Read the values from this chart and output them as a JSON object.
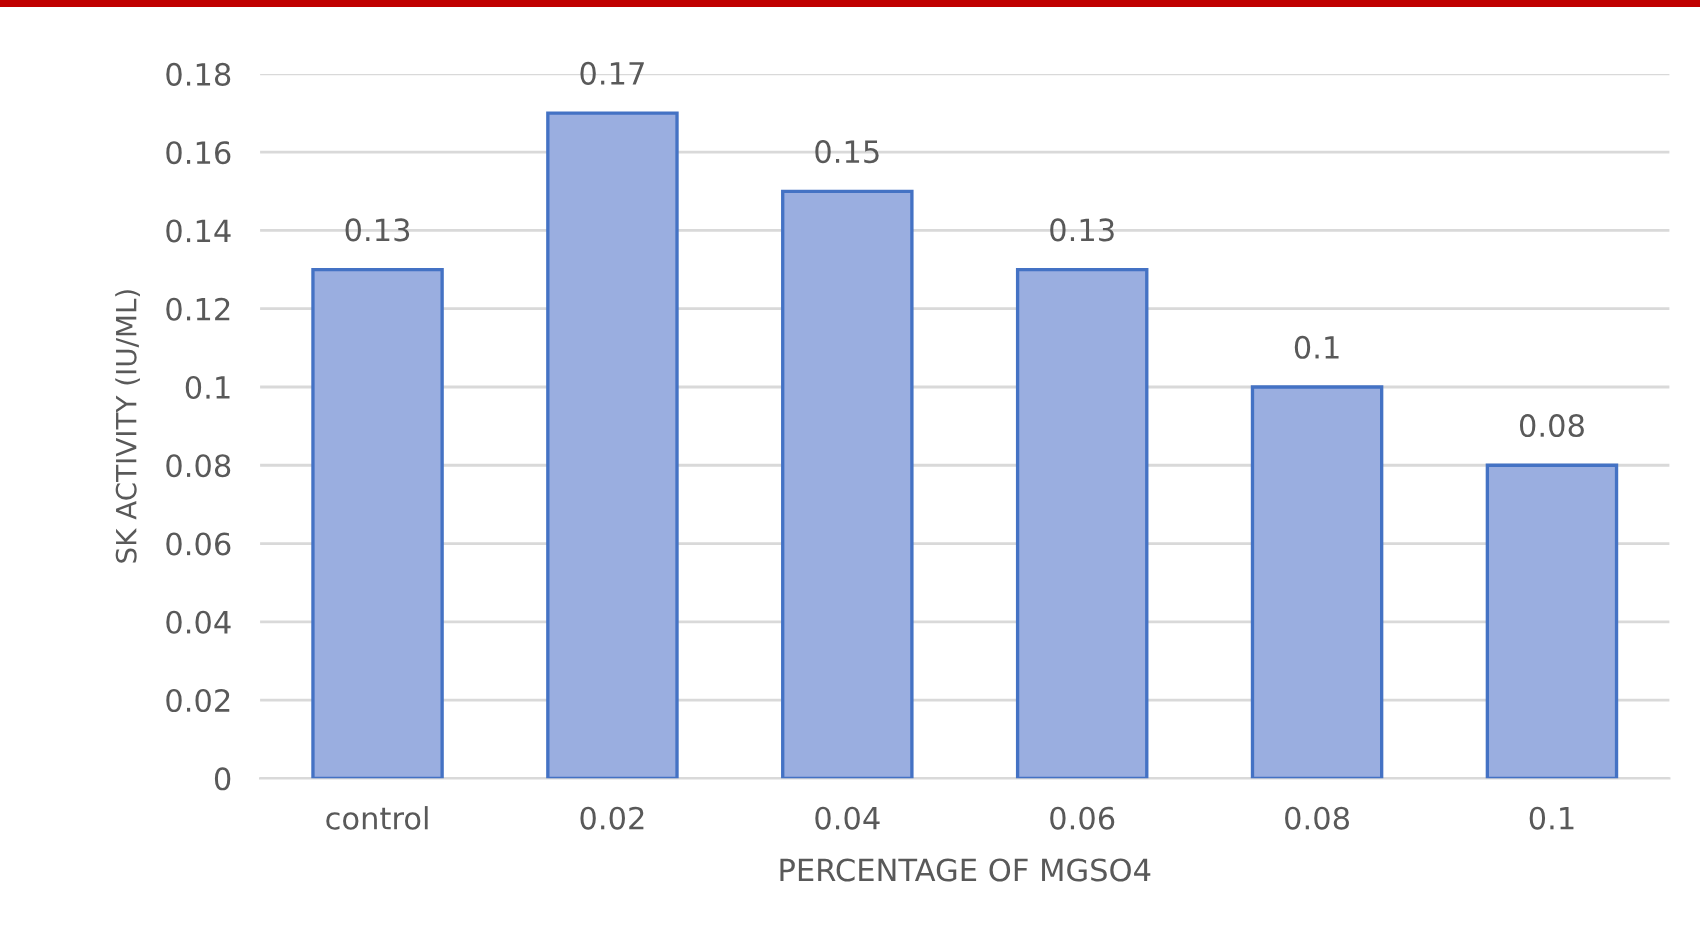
{
  "chart_data": {
    "type": "bar",
    "xlabel": "PERCENTAGE OF MGSO4",
    "ylabel": "SK ACTIVITY (IU/ML)",
    "categories": [
      "control",
      "0.02",
      "0.04",
      "0.06",
      "0.08",
      "0.1"
    ],
    "values": [
      0.13,
      0.17,
      0.15,
      0.13,
      0.1,
      0.08
    ],
    "color": "#9aaee0",
    "ylim": [
      0,
      0.18
    ],
    "yticks": [
      0,
      0.02,
      0.04,
      0.06,
      0.08,
      0.1,
      0.12,
      0.14,
      0.16,
      0.18
    ],
    "grid": "y",
    "data_labels": true,
    "legend": false
  }
}
